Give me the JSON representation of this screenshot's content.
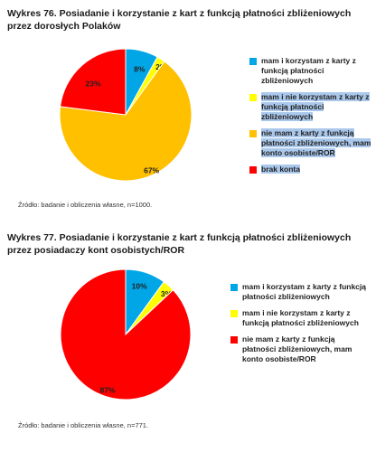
{
  "chart_data": [
    {
      "type": "pie",
      "title": "Wykres 76. Posiadanie i korzystanie z kart z funkcją płatności zbliżeniowych przez dorosłych Polaków",
      "source": "Źródło: badanie i obliczenia własne, n=1000.",
      "legend_position": "right",
      "series": [
        {
          "name": "mam i korzystam z karty z funkcją płatności zbliżeniowych",
          "value": 8,
          "label": "8%",
          "color": "#00a6e6"
        },
        {
          "name": "mam i nie korzystam z karty z funkcją płatności zbliżeniowych",
          "value": 2,
          "label": "2%",
          "color": "#ffff00"
        },
        {
          "name": "nie mam z karty z funkcją płatności zbliżeniowych, mam konto osobiste/ROR",
          "value": 67,
          "label": "67%",
          "color": "#ffc000"
        },
        {
          "name": "brak konta",
          "value": 23,
          "label": "23%",
          "color": "#ff0000"
        }
      ]
    },
    {
      "type": "pie",
      "title": "Wykres 77. Posiadanie i korzystanie z kart z funkcją płatności zbliżeniowych przez posiadaczy kont osobistych/ROR",
      "source": "Źródło: badanie i obliczenia własne, n=771.",
      "legend_position": "right",
      "series": [
        {
          "name": "mam i korzystam z karty z funkcją płatności zbliżeniowych",
          "value": 10,
          "label": "10%",
          "color": "#00a6e6"
        },
        {
          "name": "mam i nie korzystam z karty z funkcją płatności zbliżeniowych",
          "value": 3,
          "label": "3%",
          "color": "#ffff00"
        },
        {
          "name": "nie mam z karty z funkcją płatności zbliżeniowych, mam konto osobiste/ROR",
          "value": 87,
          "label": "87%",
          "color": "#ff0000"
        }
      ]
    }
  ]
}
